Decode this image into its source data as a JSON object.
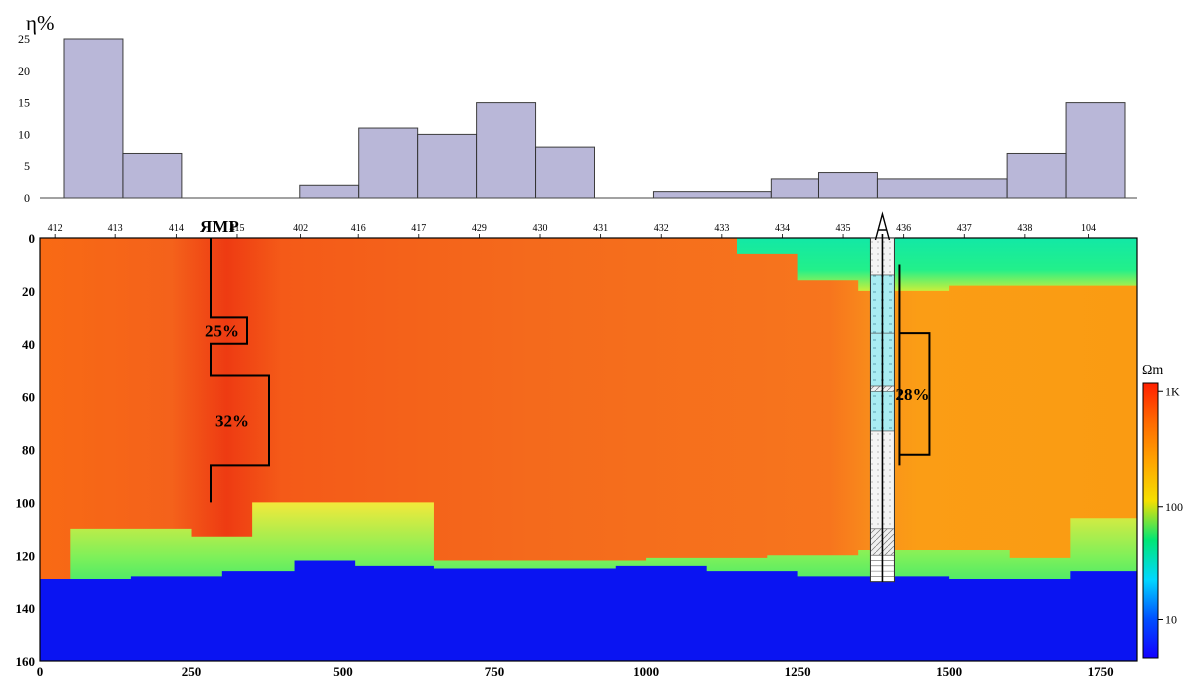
{
  "chart_data": [
    {
      "type": "bar",
      "ylabel": "η%",
      "ylim": [
        0,
        25
      ],
      "yticks": [
        "0",
        "5",
        "10",
        "15",
        "20",
        "25"
      ],
      "grid": false,
      "color": "#b6b4d6",
      "bars": [
        {
          "x0": 0,
          "x1": 100,
          "value": 25
        },
        {
          "x0": 100,
          "x1": 200,
          "value": 7
        },
        {
          "x0": 400,
          "x1": 500,
          "value": 2
        },
        {
          "x0": 500,
          "x1": 600,
          "value": 11
        },
        {
          "x0": 600,
          "x1": 700,
          "value": 10
        },
        {
          "x0": 700,
          "x1": 800,
          "value": 15
        },
        {
          "x0": 800,
          "x1": 900,
          "value": 8
        },
        {
          "x0": 1000,
          "x1": 1200,
          "value": 1
        },
        {
          "x0": 1200,
          "x1": 1280,
          "value": 3
        },
        {
          "x0": 1280,
          "x1": 1380,
          "value": 4
        },
        {
          "x0": 1380,
          "x1": 1600,
          "value": 3
        },
        {
          "x0": 1600,
          "x1": 1700,
          "value": 7
        },
        {
          "x0": 1700,
          "x1": 1800,
          "value": 15
        }
      ]
    },
    {
      "type": "heatmap",
      "stations": [
        "412",
        "413",
        "414",
        "415",
        "402",
        "416",
        "417",
        "429",
        "430",
        "431",
        "432",
        "433",
        "434",
        "435",
        "436",
        "437",
        "438",
        "104"
      ],
      "station_x": [
        25,
        124,
        225,
        325,
        430,
        525,
        625,
        725,
        825,
        925,
        1025,
        1125,
        1225,
        1325,
        1425,
        1525,
        1625,
        1730
      ],
      "xlim": [
        0,
        1810
      ],
      "xticks": [
        "0",
        "250",
        "500",
        "750",
        "1000",
        "1250",
        "1500",
        "1750"
      ],
      "xtick_values": [
        0,
        250,
        500,
        750,
        1000,
        1250,
        1500,
        1750
      ],
      "ylim": [
        0,
        160
      ],
      "yticks": [
        "0",
        "20",
        "40",
        "60",
        "80",
        "100",
        "120",
        "140",
        "160"
      ],
      "ytick_values": [
        0,
        20,
        40,
        60,
        80,
        100,
        120,
        140,
        160
      ],
      "bottom_layer_top": [
        [
          0,
          129
        ],
        [
          150,
          128
        ],
        [
          300,
          126
        ],
        [
          420,
          122
        ],
        [
          520,
          124
        ],
        [
          650,
          125
        ],
        [
          950,
          124
        ],
        [
          1100,
          126
        ],
        [
          1250,
          128
        ],
        [
          1500,
          129
        ],
        [
          1700,
          126
        ],
        [
          1810,
          122
        ]
      ],
      "transition_top": [
        [
          50,
          110
        ],
        [
          150,
          110
        ],
        [
          250,
          113
        ],
        [
          300,
          113
        ],
        [
          350,
          100
        ],
        [
          600,
          100
        ],
        [
          650,
          122
        ],
        [
          1000,
          121
        ],
        [
          1200,
          120
        ],
        [
          1350,
          118
        ],
        [
          1600,
          121
        ],
        [
          1700,
          106
        ],
        [
          1810,
          106
        ]
      ],
      "surface_layer_bottom": [
        [
          1030,
          0
        ],
        [
          1150,
          6
        ],
        [
          1250,
          16
        ],
        [
          1350,
          20
        ],
        [
          1500,
          18
        ],
        [
          1810,
          18
        ]
      ],
      "nmr_label": "ЯМР",
      "nmr_values": [
        "25%",
        "32%"
      ],
      "nmr_profile": [
        [
          0,
          0
        ],
        [
          30,
          0
        ],
        [
          30,
          1
        ],
        [
          40,
          1
        ],
        [
          40,
          0
        ],
        [
          52,
          0
        ],
        [
          52,
          1
        ],
        [
          86,
          1
        ],
        [
          86,
          0
        ],
        [
          100,
          0
        ]
      ],
      "borehole_x": 1390,
      "borehole_bottom": 130,
      "borehole_value": "28%",
      "borehole_profile": [
        [
          36,
          1
        ],
        [
          82,
          1
        ],
        [
          82,
          0
        ],
        [
          86,
          0
        ]
      ]
    },
    {
      "type": "colorbar",
      "label": "Ωm",
      "ticks": [
        "1K",
        "100",
        "10"
      ],
      "colors": [
        "#ff1f00",
        "#ff6a00",
        "#ffa500",
        "#f5e000",
        "#00e676",
        "#00d8ff",
        "#0050ff",
        "#1400ff"
      ]
    }
  ]
}
